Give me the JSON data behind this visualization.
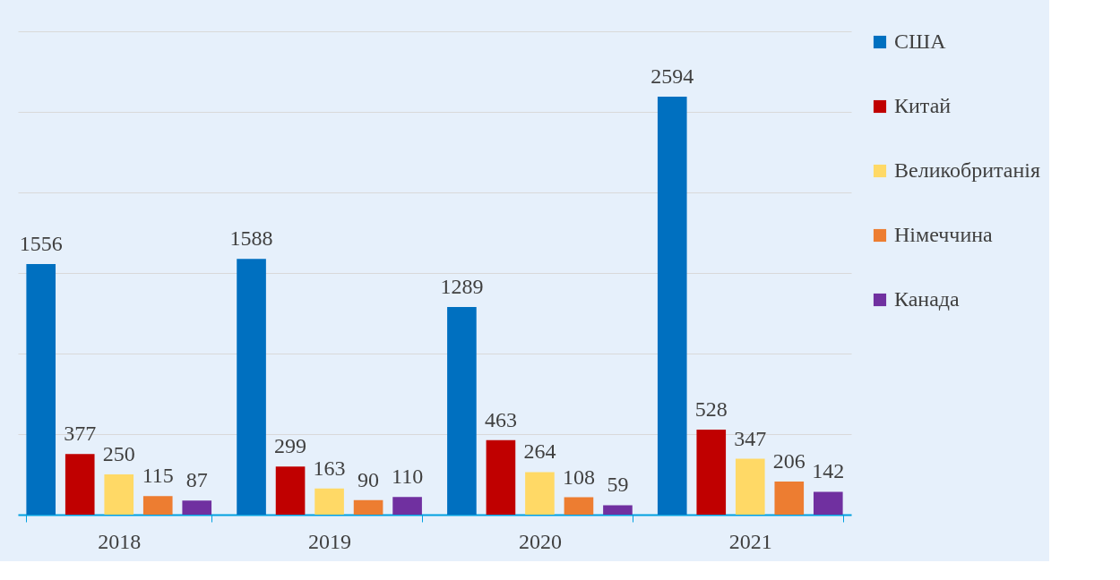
{
  "chart_data": {
    "type": "bar",
    "categories": [
      "2018",
      "2019",
      "2020",
      "2021"
    ],
    "series": [
      {
        "name": "США",
        "color": "#0070c0",
        "values": [
          1556,
          1588,
          1289,
          2594
        ]
      },
      {
        "name": "Китай",
        "color": "#c00000",
        "values": [
          377,
          299,
          463,
          528
        ]
      },
      {
        "name": "Великобританія",
        "color": "#ffd966",
        "values": [
          250,
          163,
          264,
          347
        ]
      },
      {
        "name": "Німеччина",
        "color": "#ed7d31",
        "values": [
          115,
          90,
          108,
          206
        ]
      },
      {
        "name": "Канада",
        "color": "#7030a0",
        "values": [
          87,
          110,
          59,
          142
        ]
      }
    ],
    "ylim": [
      0,
      3000
    ],
    "yticks": [
      {
        "value": 0,
        "label": null
      },
      {
        "value": 500,
        "label": null
      },
      {
        "value": 1000,
        "label": null
      },
      {
        "value": 1500,
        "label": null
      },
      {
        "value": 2000,
        "label": null
      },
      {
        "value": 2500,
        "label": null
      },
      {
        "value": 3000,
        "label": null
      }
    ],
    "tick_labels": "x",
    "grid": "y",
    "legend": "right",
    "data_labels": true
  }
}
